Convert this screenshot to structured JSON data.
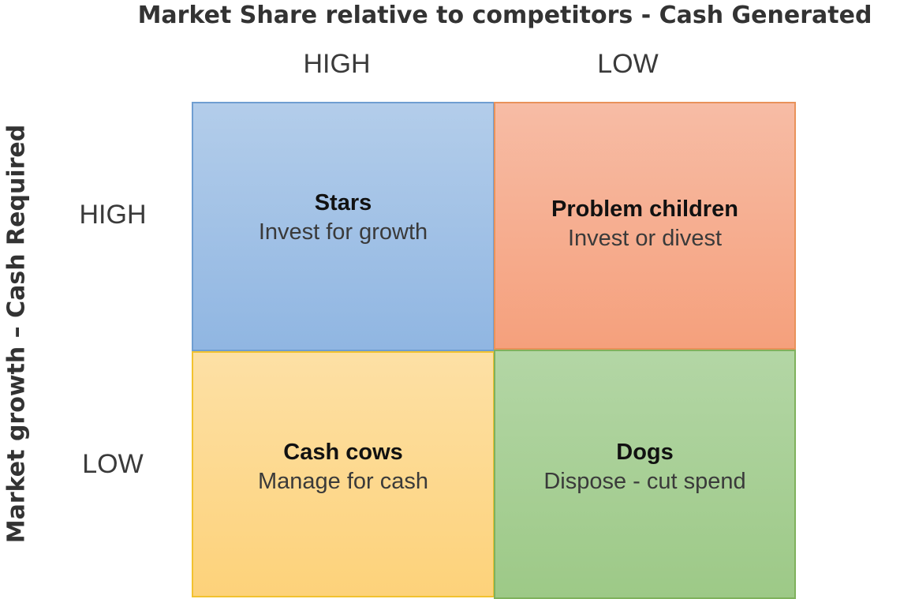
{
  "title": "Market Share relative to competitors - Cash Generated",
  "columns": [
    "HIGH",
    "LOW"
  ],
  "rows": [
    "HIGH",
    "LOW"
  ],
  "y_axis_label": "Market growth – Cash Required",
  "quadrants": [
    {
      "name": "Stars",
      "action": "Invest for growth",
      "color": "#9dbde5"
    },
    {
      "name": "Problem children",
      "action": "Invest or divest",
      "color": "#f6ad8e"
    },
    {
      "name": "Cash cows",
      "action": "Manage for cash",
      "color": "#fdd98f"
    },
    {
      "name": "Dogs",
      "action": "Dispose - cut spend",
      "color": "#a8cf96"
    }
  ]
}
